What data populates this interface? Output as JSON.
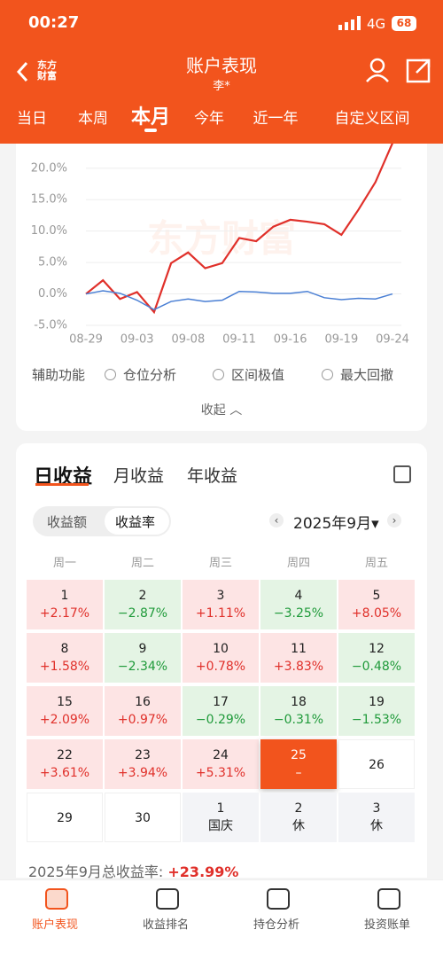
{
  "status": {
    "time": "00:27",
    "network": "4G",
    "battery": "68"
  },
  "header": {
    "logo": [
      "东方",
      "财富"
    ],
    "title": "账户表现",
    "subtitle": "李*"
  },
  "tabs": {
    "items": [
      "当日",
      "本周",
      "本月",
      "今年",
      "近一年",
      "自定义区间"
    ],
    "active": 2
  },
  "chart_data": {
    "type": "line",
    "watermark": "东方财富",
    "categories": [
      "08-29",
      null,
      null,
      "09-03",
      null,
      null,
      "09-08",
      null,
      null,
      "09-11",
      null,
      null,
      "09-16",
      null,
      null,
      "09-19",
      null,
      null,
      "09-24"
    ],
    "series": [
      {
        "color": "#e0302a",
        "values": [
          0,
          2.17,
          -0.8,
          0.3,
          -2.9,
          4.9,
          6.6,
          4.1,
          4.9,
          8.9,
          8.4,
          10.7,
          11.8,
          11.5,
          11.1,
          9.4,
          13.4,
          17.8,
          24.0
        ]
      },
      {
        "color": "#4a7fd4",
        "values": [
          0,
          0.5,
          0.1,
          -1.0,
          -2.5,
          -1.2,
          -0.8,
          -1.2,
          -1.0,
          0.4,
          0.3,
          0.1,
          0.1,
          0.4,
          -0.6,
          -0.9,
          -0.7,
          -0.8,
          0.0
        ]
      }
    ],
    "ylim": [
      -5,
      23.5
    ],
    "yticks": [
      {
        "value": -5,
        "label": "-5.0%"
      },
      {
        "value": 0,
        "label": "0.0%"
      },
      {
        "value": 5,
        "label": "5.0%"
      },
      {
        "value": 10,
        "label": "10.0%"
      },
      {
        "value": 15,
        "label": "15.0%"
      },
      {
        "value": 20,
        "label": "20.0%"
      }
    ],
    "grid": true
  },
  "helpers": {
    "label": "辅助功能",
    "options": [
      "仓位分析",
      "区间极值",
      "最大回撤"
    ],
    "collapse": "收起"
  },
  "earnings": {
    "tabs": [
      "日收益",
      "月收益",
      "年收益"
    ],
    "active_tab": 0,
    "toggle": [
      "收益额",
      "收益率"
    ],
    "active_toggle": 1,
    "month": "2025年9月",
    "weekdays": [
      "周一",
      "周二",
      "周三",
      "周四",
      "周五"
    ],
    "cells": [
      {
        "day": "1",
        "text": "+2.17%",
        "tone": "up"
      },
      {
        "day": "2",
        "text": "−2.87%",
        "tone": "down"
      },
      {
        "day": "3",
        "text": "+1.11%",
        "tone": "up"
      },
      {
        "day": "4",
        "text": "−3.25%",
        "tone": "down"
      },
      {
        "day": "5",
        "text": "+8.05%",
        "tone": "up"
      },
      {
        "day": "8",
        "text": "+1.58%",
        "tone": "up"
      },
      {
        "day": "9",
        "text": "−2.34%",
        "tone": "down"
      },
      {
        "day": "10",
        "text": "+0.78%",
        "tone": "up"
      },
      {
        "day": "11",
        "text": "+3.83%",
        "tone": "up"
      },
      {
        "day": "12",
        "text": "−0.48%",
        "tone": "down"
      },
      {
        "day": "15",
        "text": "+2.09%",
        "tone": "up"
      },
      {
        "day": "16",
        "text": "+0.97%",
        "tone": "up"
      },
      {
        "day": "17",
        "text": "−0.29%",
        "tone": "down"
      },
      {
        "day": "18",
        "text": "−0.31%",
        "tone": "down"
      },
      {
        "day": "19",
        "text": "−1.53%",
        "tone": "down"
      },
      {
        "day": "22",
        "text": "+3.61%",
        "tone": "up"
      },
      {
        "day": "23",
        "text": "+3.94%",
        "tone": "up"
      },
      {
        "day": "24",
        "text": "+5.31%",
        "tone": "up"
      },
      {
        "day": "25",
        "text": "–",
        "tone": "selected"
      },
      {
        "day": "26",
        "tone": "plain"
      },
      {
        "day": "29",
        "tone": "plain"
      },
      {
        "day": "30",
        "tone": "plain"
      },
      {
        "day": "1",
        "text": "国庆",
        "tone": "off"
      },
      {
        "day": "2",
        "text": "休",
        "tone": "off"
      },
      {
        "day": "3",
        "text": "休",
        "tone": "off"
      }
    ],
    "total_label": "2025年9月总收益率:",
    "total_value": "+23.99%"
  },
  "nav": {
    "items": [
      "账户表现",
      "收益排名",
      "持仓分析",
      "投资账单"
    ],
    "active": 0
  }
}
